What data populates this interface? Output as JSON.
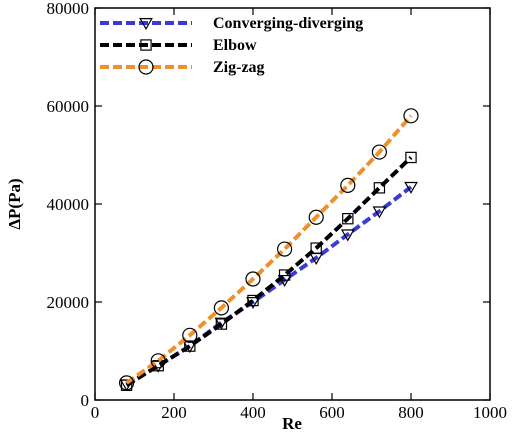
{
  "chart_data": {
    "type": "line",
    "title": "",
    "xlabel": "Re",
    "ylabel": "ΔP(Pa)",
    "xlim": [
      0,
      1000
    ],
    "ylim": [
      0,
      80000
    ],
    "x_ticks": [
      0,
      200,
      400,
      600,
      800,
      1000
    ],
    "y_ticks": [
      0,
      20000,
      40000,
      60000,
      80000
    ],
    "x_tick_labels": [
      "0",
      "200",
      "400",
      "600",
      "800",
      "1000"
    ],
    "y_tick_labels": [
      "0",
      "20000",
      "40000",
      "60000",
      "80000"
    ],
    "grid": false,
    "legend_position": "top-left",
    "x": [
      80,
      160,
      240,
      320,
      400,
      480,
      560,
      640,
      720,
      800
    ],
    "series": [
      {
        "name": "Converging-diverging",
        "marker": "triangle-down",
        "color": "#3a3ad6",
        "values": [
          3200,
          7000,
          11000,
          15800,
          20000,
          24500,
          29000,
          33800,
          38500,
          43500
        ]
      },
      {
        "name": "Elbow",
        "marker": "square",
        "color": "#000000",
        "values": [
          3000,
          7000,
          11000,
          15500,
          20300,
          25500,
          31000,
          37000,
          43300,
          49500
        ]
      },
      {
        "name": "Zig-zag",
        "marker": "circle",
        "color": "#f0902c",
        "values": [
          3500,
          8000,
          13200,
          18800,
          24700,
          30800,
          37300,
          43800,
          50600,
          58000
        ]
      }
    ]
  }
}
